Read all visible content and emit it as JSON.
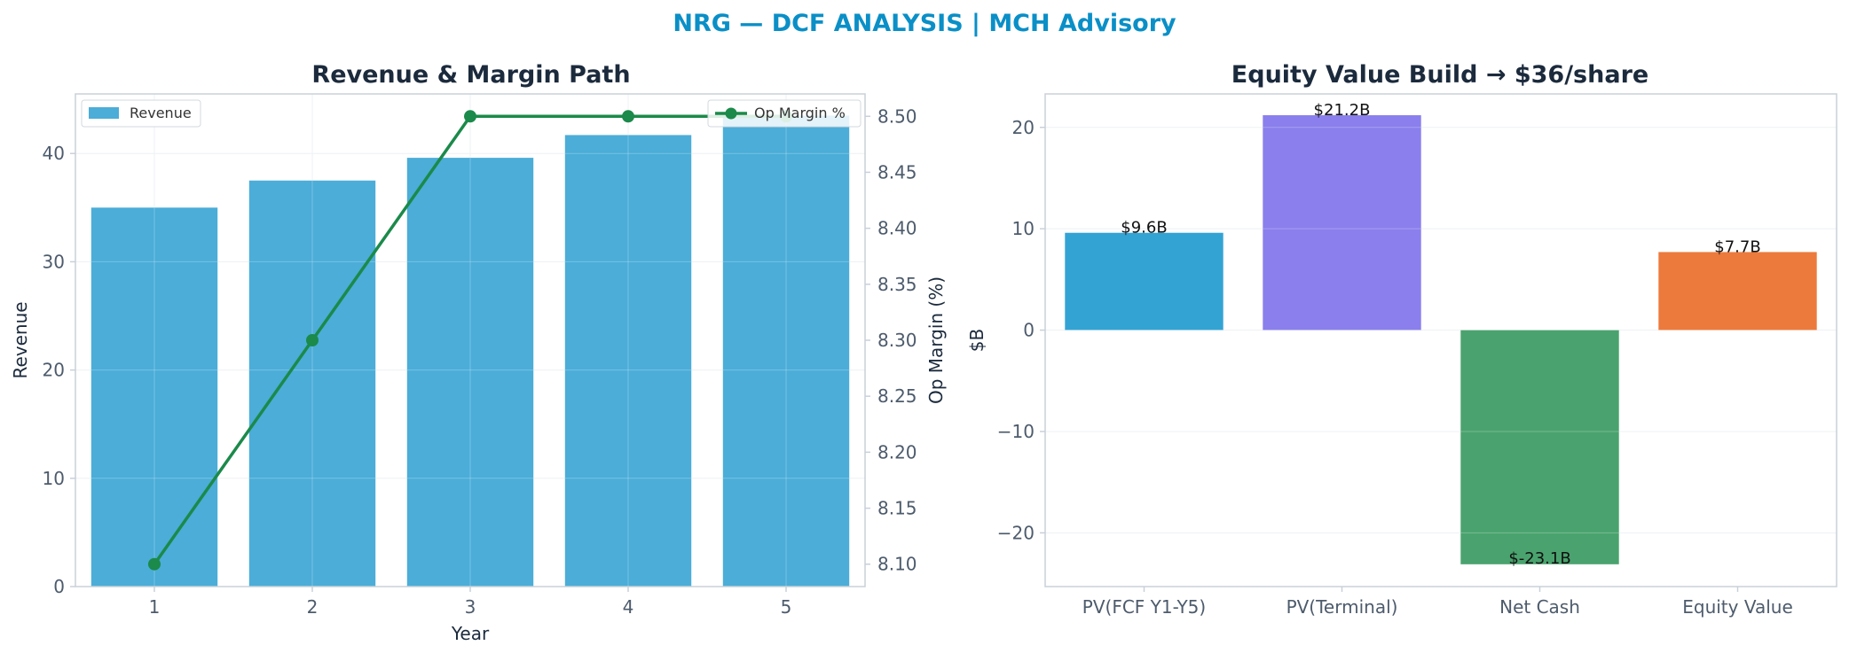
{
  "suptitle": "NRG — DCF ANALYSIS | MCH Advisory",
  "chart_data": [
    {
      "type": "bar",
      "title": "Revenue & Margin Path",
      "xlabel": "Year",
      "ylabel": "Revenue",
      "y2label": "Op Margin (%)",
      "categories": [
        "1",
        "2",
        "3",
        "4",
        "5"
      ],
      "ylim": [
        0,
        45.5
      ],
      "y2lim": [
        8.08,
        8.52
      ],
      "yticks": [
        0,
        10,
        20,
        30,
        40
      ],
      "y2ticks": [
        "8.10",
        "8.15",
        "8.20",
        "8.25",
        "8.30",
        "8.35",
        "8.40",
        "8.45",
        "8.50"
      ],
      "grid": true,
      "series": [
        {
          "name": "Revenue",
          "kind": "bar",
          "axis": "left",
          "color": "#4badd8",
          "values": [
            35.0,
            37.5,
            39.6,
            41.7,
            43.5
          ]
        },
        {
          "name": "Op Margin %",
          "kind": "line",
          "axis": "right",
          "color": "#1b8a4a",
          "values": [
            8.1,
            8.3,
            8.5,
            8.5,
            8.5
          ]
        }
      ],
      "legend": [
        {
          "label": "Revenue",
          "placement": "top-left"
        },
        {
          "label": "Op Margin %",
          "placement": "top-right"
        }
      ]
    },
    {
      "type": "bar",
      "title": "Equity Value Build → $36/share",
      "xlabel": "",
      "ylabel": "$B",
      "categories": [
        "PV(FCF Y1-Y5)",
        "PV(Terminal)",
        "Net Cash",
        "Equity Value"
      ],
      "values": [
        9.6,
        21.2,
        -23.1,
        7.7
      ],
      "labels": [
        "$9.6B",
        "$21.2B",
        "$-23.1B",
        "$7.7B"
      ],
      "colors": [
        "#33a3d4",
        "#8a7fec",
        "#4aa36e",
        "#ec7a3c"
      ],
      "ylim": [
        -25.3,
        23.3
      ],
      "yticks": [
        "20",
        "10",
        "0",
        "−10",
        "−20"
      ],
      "grid": true
    }
  ]
}
